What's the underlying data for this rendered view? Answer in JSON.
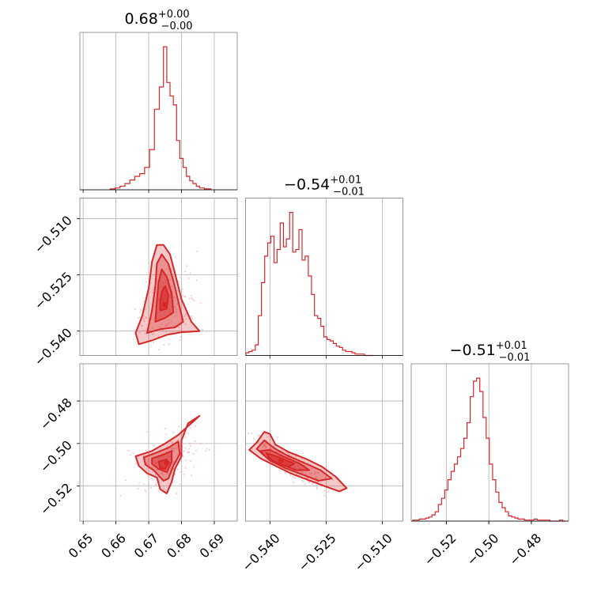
{
  "chart_data": {
    "type": "corner",
    "color": "#d62728",
    "grid": true,
    "parameters": [
      {
        "title": {
          "value": "0.68",
          "upper": "+0.00",
          "lower": "−0.00"
        },
        "range": [
          0.649,
          0.697
        ],
        "ticks": [
          {
            "value": 0.65,
            "label": "0.65"
          },
          {
            "value": 0.66,
            "label": "0.66"
          },
          {
            "value": 0.67,
            "label": "0.67"
          },
          {
            "value": 0.68,
            "label": "0.68"
          },
          {
            "value": 0.69,
            "label": "0.69"
          }
        ],
        "hist": {
          "x": [
            0.659,
            0.6605,
            0.662,
            0.6635,
            0.665,
            0.6665,
            0.668,
            0.6695,
            0.671,
            0.6725,
            0.674,
            0.675,
            0.676,
            0.677,
            0.678,
            0.679,
            0.68,
            0.681,
            0.682,
            0.683,
            0.684,
            0.685,
            0.686,
            0.688
          ],
          "y": [
            1,
            2,
            4,
            7,
            11,
            15,
            18,
            25,
            45,
            90,
            115,
            160,
            120,
            105,
            95,
            55,
            35,
            25,
            15,
            10,
            7,
            4,
            2,
            1
          ]
        }
      },
      {
        "title": {
          "value": "−0.54",
          "upper": "+0.01",
          "lower": "−0.01"
        },
        "range": [
          -0.5465,
          -0.5045
        ],
        "ticks": [
          {
            "value": -0.51,
            "label": "−0.510"
          },
          {
            "value": -0.525,
            "label": "−0.525"
          },
          {
            "value": -0.54,
            "label": "−0.540"
          }
        ],
        "hist": {
          "x": [
            -0.546,
            -0.5452,
            -0.5443,
            -0.5435,
            -0.5427,
            -0.5418,
            -0.541,
            -0.5402,
            -0.5393,
            -0.5385,
            -0.5377,
            -0.5368,
            -0.536,
            -0.5352,
            -0.5343,
            -0.5335,
            -0.5327,
            -0.5318,
            -0.531,
            -0.5302,
            -0.5293,
            -0.5285,
            -0.5277,
            -0.5268,
            -0.526,
            -0.5252,
            -0.5243,
            -0.5235,
            -0.5227,
            -0.5218,
            -0.521,
            -0.5202,
            -0.5193,
            -0.5185,
            -0.5177,
            -0.5168,
            -0.516,
            -0.5152,
            -0.5143,
            -0.5135,
            -0.5127
          ],
          "y": [
            2,
            3,
            4,
            8,
            30,
            55,
            75,
            85,
            90,
            70,
            80,
            100,
            82,
            88,
            108,
            78,
            80,
            95,
            72,
            75,
            60,
            46,
            30,
            28,
            22,
            14,
            12,
            11,
            9,
            7,
            6,
            4,
            3,
            3,
            2,
            1,
            1,
            1,
            0,
            0,
            0
          ]
        }
      },
      {
        "title": {
          "value": "−0.51",
          "upper": "+0.01",
          "lower": "−0.01"
        },
        "range": [
          -0.5365,
          -0.4625
        ],
        "ticks": [
          {
            "value": -0.52,
            "label": "−0.52"
          },
          {
            "value": -0.5,
            "label": "−0.50"
          },
          {
            "value": -0.48,
            "label": "−0.48"
          }
        ],
        "hist": {
          "x": [
            -0.535,
            -0.5335,
            -0.532,
            -0.5305,
            -0.529,
            -0.5275,
            -0.526,
            -0.5245,
            -0.523,
            -0.5215,
            -0.52,
            -0.5185,
            -0.517,
            -0.5155,
            -0.514,
            -0.5125,
            -0.511,
            -0.5095,
            -0.508,
            -0.5065,
            -0.505,
            -0.5035,
            -0.502,
            -0.5005,
            -0.499,
            -0.4975,
            -0.496,
            -0.4945,
            -0.493,
            -0.4915,
            -0.49,
            -0.4885,
            -0.487,
            -0.4855,
            -0.484,
            -0.4825,
            -0.481,
            -0.4795,
            -0.478,
            -0.4765,
            -0.475,
            -0.4735,
            -0.472,
            -0.4705,
            -0.469,
            -0.4675,
            -0.466,
            -0.4645
          ],
          "y": [
            1,
            1,
            2,
            2,
            3,
            4,
            6,
            9,
            16,
            22,
            30,
            40,
            48,
            55,
            62,
            70,
            80,
            95,
            120,
            135,
            138,
            125,
            100,
            80,
            55,
            40,
            28,
            18,
            13,
            9,
            5,
            4,
            3,
            2,
            2,
            1,
            1,
            1,
            2,
            1,
            1,
            1,
            1,
            0,
            0,
            0,
            1,
            0
          ]
        }
      }
    ],
    "pairs": [
      {
        "row": 1,
        "col": 0,
        "center": [
          0.675,
          -0.533
        ],
        "contours": [
          [
            [
              0.667,
              -0.5435
            ],
            [
              0.671,
              -0.5425
            ],
            [
              0.6755,
              -0.541
            ],
            [
              0.68,
              -0.5403
            ],
            [
              0.6855,
              -0.54
            ],
            [
              0.683,
              -0.5375
            ],
            [
              0.68,
              -0.5315
            ],
            [
              0.678,
              -0.5245
            ],
            [
              0.6765,
              -0.5195
            ],
            [
              0.6745,
              -0.517
            ],
            [
              0.6725,
              -0.517
            ],
            [
              0.671,
              -0.5215
            ],
            [
              0.67,
              -0.5285
            ],
            [
              0.668,
              -0.536
            ],
            [
              0.666,
              -0.5405
            ]
          ],
          [
            [
              0.6695,
              -0.5405
            ],
            [
              0.6735,
              -0.5395
            ],
            [
              0.678,
              -0.539
            ],
            [
              0.6805,
              -0.5375
            ],
            [
              0.679,
              -0.532
            ],
            [
              0.6775,
              -0.5265
            ],
            [
              0.676,
              -0.522
            ],
            [
              0.674,
              -0.5195
            ],
            [
              0.6725,
              -0.522
            ],
            [
              0.672,
              -0.528
            ],
            [
              0.671,
              -0.5345
            ]
          ],
          [
            [
              0.672,
              -0.5375
            ],
            [
              0.675,
              -0.5365
            ],
            [
              0.6775,
              -0.535
            ],
            [
              0.677,
              -0.53
            ],
            [
              0.6755,
              -0.5255
            ],
            [
              0.674,
              -0.5235
            ],
            [
              0.673,
              -0.527
            ],
            [
              0.6725,
              -0.532
            ]
          ],
          [
            [
              0.6735,
              -0.5345
            ],
            [
              0.6755,
              -0.534
            ],
            [
              0.676,
              -0.5305
            ],
            [
              0.675,
              -0.528
            ],
            [
              0.674,
              -0.5295
            ],
            [
              0.6735,
              -0.532
            ]
          ]
        ],
        "scatter": {
          "mean": [
            0.6755,
            -0.534
          ],
          "std": [
            0.0048,
            0.0065
          ],
          "corr": 0.2,
          "count": 170,
          "xlim": [
            0.664,
            0.691
          ],
          "ylim": [
            -0.5455,
            -0.512
          ]
        }
      },
      {
        "row": 2,
        "col": 0,
        "center": [
          0.6755,
          -0.509
        ],
        "contours": [
          [
            [
              0.666,
              -0.506
            ],
            [
              0.671,
              -0.5035
            ],
            [
              0.675,
              -0.5
            ],
            [
              0.679,
              -0.496
            ],
            [
              0.6815,
              -0.4925
            ],
            [
              0.6855,
              -0.487
            ],
            [
              0.682,
              -0.4905
            ],
            [
              0.68,
              -0.4985
            ],
            [
              0.68,
              -0.506
            ],
            [
              0.678,
              -0.512
            ],
            [
              0.677,
              -0.518
            ],
            [
              0.6755,
              -0.5235
            ],
            [
              0.6735,
              -0.5215
            ],
            [
              0.6725,
              -0.516
            ],
            [
              0.6695,
              -0.514
            ],
            [
              0.667,
              -0.5105
            ]
          ],
          [
            [
              0.6685,
              -0.5065
            ],
            [
              0.672,
              -0.5045
            ],
            [
              0.676,
              -0.502
            ],
            [
              0.679,
              -0.499
            ],
            [
              0.6795,
              -0.505
            ],
            [
              0.6775,
              -0.5105
            ],
            [
              0.676,
              -0.5165
            ],
            [
              0.6745,
              -0.5175
            ],
            [
              0.6715,
              -0.5125
            ],
            [
              0.669,
              -0.51
            ]
          ],
          [
            [
              0.671,
              -0.507
            ],
            [
              0.674,
              -0.5055
            ],
            [
              0.677,
              -0.5035
            ],
            [
              0.677,
              -0.5085
            ],
            [
              0.6755,
              -0.5135
            ],
            [
              0.673,
              -0.512
            ],
            [
              0.671,
              -0.5095
            ]
          ],
          [
            [
              0.673,
              -0.5085
            ],
            [
              0.6755,
              -0.5075
            ],
            [
              0.676,
              -0.5095
            ],
            [
              0.675,
              -0.512
            ],
            [
              0.6735,
              -0.5115
            ]
          ]
        ],
        "scatter": {
          "mean": [
            0.6755,
            -0.508
          ],
          "std": [
            0.0045,
            0.0068
          ],
          "corr": 0.45,
          "count": 180,
          "xlim": [
            0.651,
            0.696
          ],
          "ylim": [
            -0.528,
            -0.473
          ]
        }
      },
      {
        "row": 2,
        "col": 1,
        "center": [
          -0.537,
          -0.508
        ],
        "contours": [
          [
            [
              -0.5455,
              -0.503
            ],
            [
              -0.5435,
              -0.4995
            ],
            [
              -0.5415,
              -0.4945
            ],
            [
              -0.54,
              -0.4955
            ],
            [
              -0.5385,
              -0.5005
            ],
            [
              -0.535,
              -0.504
            ],
            [
              -0.53,
              -0.5075
            ],
            [
              -0.526,
              -0.511
            ],
            [
              -0.5225,
              -0.5155
            ],
            [
              -0.5195,
              -0.521
            ],
            [
              -0.5215,
              -0.5225
            ],
            [
              -0.5255,
              -0.52
            ],
            [
              -0.53,
              -0.517
            ],
            [
              -0.5345,
              -0.514
            ],
            [
              -0.5385,
              -0.5105
            ],
            [
              -0.5425,
              -0.507
            ]
          ],
          [
            [
              -0.5435,
              -0.5025
            ],
            [
              -0.5415,
              -0.4985
            ],
            [
              -0.539,
              -0.502
            ],
            [
              -0.5355,
              -0.5055
            ],
            [
              -0.531,
              -0.509
            ],
            [
              -0.5265,
              -0.5125
            ],
            [
              -0.5235,
              -0.5165
            ],
            [
              -0.527,
              -0.5175
            ],
            [
              -0.5315,
              -0.5145
            ],
            [
              -0.536,
              -0.5115
            ],
            [
              -0.54,
              -0.508
            ]
          ],
          [
            [
              -0.5425,
              -0.5035
            ],
            [
              -0.54,
              -0.503
            ],
            [
              -0.5365,
              -0.506
            ],
            [
              -0.532,
              -0.5095
            ],
            [
              -0.5295,
              -0.5125
            ],
            [
              -0.533,
              -0.5125
            ],
            [
              -0.5375,
              -0.5095
            ],
            [
              -0.541,
              -0.5065
            ]
          ],
          [
            [
              -0.541,
              -0.5045
            ],
            [
              -0.5375,
              -0.5065
            ],
            [
              -0.5335,
              -0.5095
            ],
            [
              -0.535,
              -0.511
            ],
            [
              -0.5395,
              -0.5085
            ]
          ]
        ],
        "scatter": {
          "mean": [
            -0.5345,
            -0.5095
          ],
          "std": [
            0.0045,
            0.0062
          ],
          "corr": -0.88,
          "count": 220,
          "xlim": [
            -0.5465,
            -0.5055
          ],
          "ylim": [
            -0.531,
            -0.495
          ]
        }
      }
    ]
  }
}
